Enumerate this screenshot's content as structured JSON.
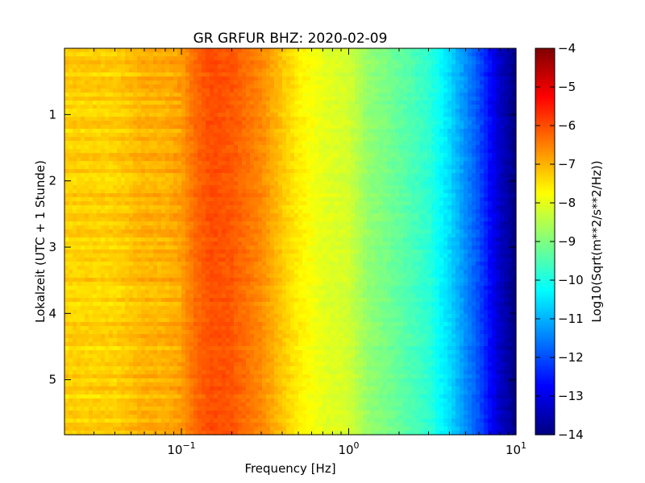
{
  "chart_data": {
    "type": "heatmap",
    "title": "GR GRFUR BHZ: 2020-02-09",
    "xlabel": "Frequency [Hz]",
    "ylabel": "Lokalzeit (UTC + 1 Stunde)",
    "x_scale": "log",
    "xlim": [
      0.02,
      10
    ],
    "ylim": [
      0,
      5.83
    ],
    "y_inverted": true,
    "x_ticks": [
      {
        "value": 0.1,
        "base": "10",
        "exp": "−1"
      },
      {
        "value": 1,
        "base": "10",
        "exp": "0"
      },
      {
        "value": 10,
        "base": "10",
        "exp": "1"
      }
    ],
    "y_ticks": [
      "1",
      "2",
      "3",
      "4",
      "5"
    ],
    "colormap": "jet",
    "colorbar": {
      "label": "Log10(Sqrt(m**2/s**2/Hz))",
      "range": [
        -14,
        -4
      ],
      "ticks": [
        "−4",
        "−5",
        "−6",
        "−7",
        "−8",
        "−9",
        "−10",
        "−11",
        "−12",
        "−13",
        "−14"
      ]
    },
    "spectrum_profile": {
      "frequency_hz": [
        0.02,
        0.04,
        0.06,
        0.08,
        0.1,
        0.12,
        0.15,
        0.2,
        0.3,
        0.4,
        0.5,
        0.7,
        1.0,
        1.3,
        2.0,
        3.0,
        4.0,
        6.0,
        8.0,
        10.0
      ],
      "value": [
        -7.3,
        -7.3,
        -7.0,
        -7.0,
        -6.8,
        -6.3,
        -6.0,
        -6.1,
        -6.6,
        -7.2,
        -7.6,
        -8.0,
        -8.2,
        -8.8,
        -9.3,
        -9.8,
        -10.6,
        -12.0,
        -13.3,
        -14.0
      ]
    }
  }
}
